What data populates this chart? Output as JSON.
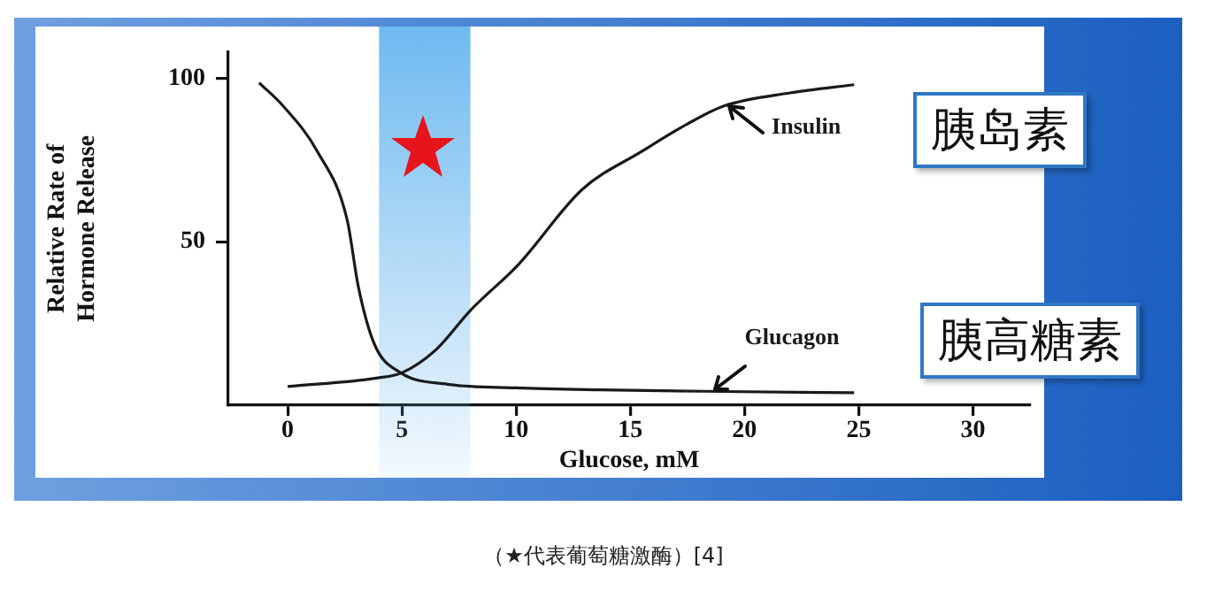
{
  "chart_data": {
    "type": "line",
    "xlabel": "Glucose, mM",
    "ylabel": "Relative Rate of Hormone Release",
    "xlim": [
      -2.6,
      32.5
    ],
    "ylim": [
      0,
      108
    ],
    "xticks": [
      0,
      5,
      10,
      15,
      20,
      25,
      30
    ],
    "yticks": [
      50,
      100
    ],
    "marker": "none",
    "series": [
      {
        "name": "Insulin",
        "color": "#1a1a1a",
        "x": [
          0,
          3.9,
          5,
          6.5,
          8,
          10.1,
          12.9,
          15.5,
          17.5,
          19.1,
          22,
          24.8
        ],
        "values": [
          5.7,
          8.3,
          9.9,
          17,
          29,
          43,
          66,
          77.6,
          86,
          91.5,
          95.5,
          98
        ]
      },
      {
        "name": "Glucagon",
        "color": "#1a1a1a",
        "x": [
          -1.25,
          -0.2,
          1.3,
          2.6,
          3.1,
          3.8,
          4.95,
          7,
          10,
          13.7,
          19,
          24.8
        ],
        "values": [
          98.6,
          91.5,
          77.6,
          56.8,
          36,
          18.6,
          9.9,
          6.4,
          5.3,
          4.7,
          4.2,
          3.8
        ]
      }
    ],
    "bands": [
      {
        "axis": "x",
        "from": 4,
        "to": 8,
        "color": "#4aa8ec"
      }
    ],
    "annotations": [
      "胰岛素",
      "胰高糖素",
      "（★代表葡萄糖激酶）[4]"
    ]
  }
}
